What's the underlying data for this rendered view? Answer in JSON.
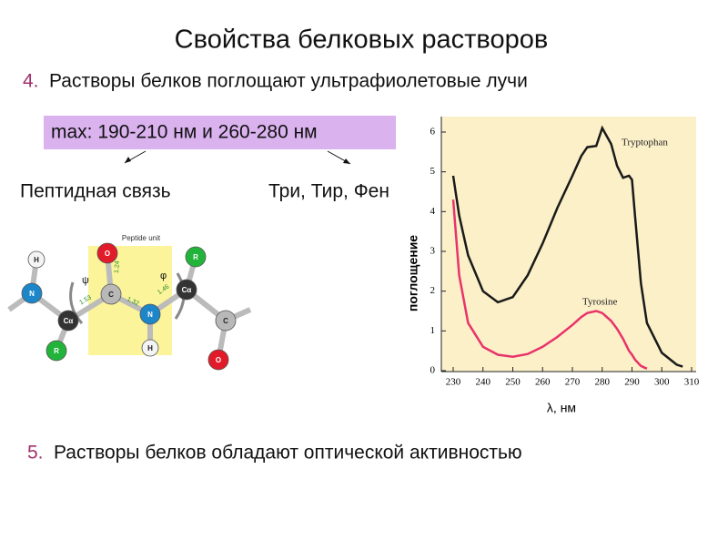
{
  "slide": {
    "title": "Свойства белковых растворов",
    "items": [
      {
        "number": "4.",
        "text": "Растворы белков поглощают ультрафиолетовые лучи"
      },
      {
        "number": "5.",
        "text": "Растворы белков обладают оптической активностью"
      }
    ],
    "highlight": "max: 190-210 нм и 260-280 нм",
    "branches": [
      "Пептидная связь",
      "Три, Тир, Фен"
    ]
  },
  "diagram": {
    "title": "Peptide unit",
    "symbols": [
      "ψ",
      "φ"
    ],
    "bond_lengths": [
      "1.24",
      "1.32",
      "1.46",
      "1.53"
    ],
    "atoms": [
      "O",
      "C",
      "N",
      "Cα",
      "R",
      "C",
      "O",
      "H",
      "N",
      "H",
      "Cα",
      "R"
    ]
  },
  "chart_data": {
    "type": "line",
    "x_label": "λ, нм",
    "y_label": "поглощение",
    "x": [
      230,
      232,
      235,
      240,
      245,
      250,
      255,
      260,
      265,
      270,
      273,
      275,
      278,
      280,
      283,
      285,
      287,
      289,
      290,
      291,
      293,
      295,
      300,
      305,
      307
    ],
    "xlim": [
      230,
      310
    ],
    "xticks": [
      230,
      240,
      250,
      260,
      270,
      280,
      290,
      300,
      310
    ],
    "ylim": [
      0,
      6
    ],
    "yticks": [
      0,
      1,
      2,
      3,
      4,
      5,
      6
    ],
    "series": [
      {
        "name": "Tryptophan",
        "color": "#1a1a1a",
        "values": [
          4.9,
          3.9,
          2.9,
          2.0,
          1.72,
          1.85,
          2.4,
          3.2,
          4.1,
          4.9,
          5.4,
          5.62,
          5.65,
          6.1,
          5.7,
          5.15,
          4.85,
          4.9,
          4.8,
          3.9,
          2.2,
          1.2,
          0.45,
          0.15,
          0.1
        ]
      },
      {
        "name": "Tyrosine",
        "color": "#e8336a",
        "values": [
          4.3,
          2.4,
          1.2,
          0.6,
          0.4,
          0.35,
          0.42,
          0.6,
          0.85,
          1.15,
          1.35,
          1.45,
          1.5,
          1.45,
          1.25,
          1.05,
          0.8,
          0.5,
          0.4,
          0.28,
          0.12,
          0.05,
          null,
          null,
          null
        ]
      }
    ]
  }
}
